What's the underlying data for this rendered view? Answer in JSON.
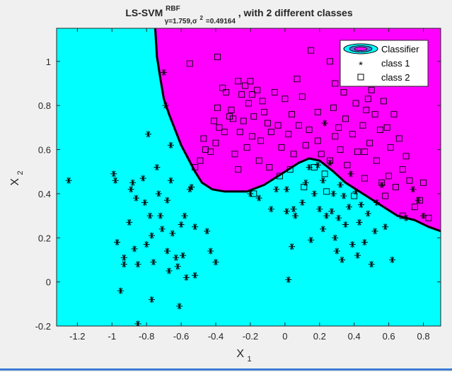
{
  "window": {
    "accent_color": "#3a7bd5",
    "background": "#f0f0f0"
  },
  "chart_data": {
    "type": "scatter",
    "title": {
      "main": "LS-SVM",
      "superscript": "RBF",
      "subscript_gamma": "γ=1.759,σ",
      "subscript_sq": "2",
      "subscript_tail": "=0.49164",
      "suffix": ", with 2 different classes"
    },
    "xlabel": {
      "main": "X",
      "sub": "1"
    },
    "ylabel": {
      "main": "X",
      "sub": "2"
    },
    "xlim": [
      -1.32,
      0.9
    ],
    "ylim": [
      -0.2,
      1.15
    ],
    "xticks": [
      -1.2,
      -1,
      -0.8,
      -0.6,
      -0.4,
      -0.2,
      0,
      0.2,
      0.4,
      0.6,
      0.8
    ],
    "xtick_labels": [
      "-1.2",
      "-1",
      "-0.8",
      "-0.6",
      "-0.4",
      "-0.2",
      "0",
      "0.2",
      "0.4",
      "0.6",
      "0.8"
    ],
    "yticks": [
      -0.2,
      0,
      0.2,
      0.4,
      0.6,
      0.8,
      1
    ],
    "ytick_labels": [
      "-0.2",
      "0",
      "0.2",
      "0.4",
      "0.6",
      "0.8",
      "1"
    ],
    "grid": false,
    "legend": {
      "placement": "top-right",
      "entries": [
        "Classifier",
        "class 1",
        "class 2"
      ]
    },
    "colors": {
      "region_class1": "#00ffff",
      "region_class2": "#ff00ff",
      "boundary": "#000000",
      "markers": "#000000"
    },
    "decision_boundary": [
      [
        -0.75,
        1.15
      ],
      [
        -0.74,
        1.02
      ],
      [
        -0.72,
        0.92
      ],
      [
        -0.7,
        0.83
      ],
      [
        -0.67,
        0.76
      ],
      [
        -0.63,
        0.68
      ],
      [
        -0.6,
        0.62
      ],
      [
        -0.56,
        0.56
      ],
      [
        -0.52,
        0.5
      ],
      [
        -0.48,
        0.45
      ],
      [
        -0.42,
        0.42
      ],
      [
        -0.35,
        0.41
      ],
      [
        -0.22,
        0.41
      ],
      [
        -0.12,
        0.44
      ],
      [
        0.0,
        0.5
      ],
      [
        0.08,
        0.54
      ],
      [
        0.14,
        0.56
      ],
      [
        0.2,
        0.55
      ],
      [
        0.28,
        0.5
      ],
      [
        0.35,
        0.45
      ],
      [
        0.45,
        0.4
      ],
      [
        0.55,
        0.35
      ],
      [
        0.65,
        0.3
      ],
      [
        0.75,
        0.28
      ],
      [
        0.83,
        0.25
      ],
      [
        0.9,
        0.23
      ]
    ],
    "series": [
      {
        "name": "class 1",
        "marker": "asterisk",
        "points": [
          [
            -1.25,
            0.46
          ],
          [
            -0.99,
            0.49
          ],
          [
            -0.98,
            0.46
          ],
          [
            -0.97,
            0.18
          ],
          [
            -0.95,
            -0.04
          ],
          [
            -0.93,
            0.11
          ],
          [
            -0.93,
            0.08
          ],
          [
            -0.9,
            0.27
          ],
          [
            -0.89,
            0.42
          ],
          [
            -0.88,
            0.45
          ],
          [
            -0.87,
            0.15
          ],
          [
            -0.86,
            0.38
          ],
          [
            -0.85,
            0.08
          ],
          [
            -0.85,
            -0.19
          ],
          [
            -0.82,
            0.47
          ],
          [
            -0.81,
            0.36
          ],
          [
            -0.8,
            0.17
          ],
          [
            -0.79,
            0.67
          ],
          [
            -0.78,
            0.3
          ],
          [
            -0.77,
            0.21
          ],
          [
            -0.77,
            -0.08
          ],
          [
            -0.76,
            0.09
          ],
          [
            -0.74,
            0.52
          ],
          [
            -0.73,
            0.4
          ],
          [
            -0.72,
            0.3
          ],
          [
            -0.71,
            0.24
          ],
          [
            -0.7,
            0.95
          ],
          [
            -0.69,
            0.8
          ],
          [
            -0.68,
            0.37
          ],
          [
            -0.68,
            0.14
          ],
          [
            -0.67,
            0.05
          ],
          [
            -0.66,
            0.62
          ],
          [
            -0.66,
            0.46
          ],
          [
            -0.65,
            0.22
          ],
          [
            -0.63,
            0.11
          ],
          [
            -0.62,
            0.07
          ],
          [
            -0.61,
            -0.11
          ],
          [
            -0.6,
            0.26
          ],
          [
            -0.59,
            0.12
          ],
          [
            -0.58,
            0.3
          ],
          [
            -0.57,
            0.02
          ],
          [
            -0.55,
            0.42
          ],
          [
            -0.54,
            0.43
          ],
          [
            -0.52,
            0.03
          ],
          [
            -0.52,
            0.25
          ],
          [
            -0.45,
            0.23
          ],
          [
            -0.43,
            0.14
          ],
          [
            -0.4,
            0.09
          ],
          [
            -0.2,
            0.4
          ],
          [
            -0.15,
            0.38
          ],
          [
            -0.08,
            0.33
          ],
          [
            -0.05,
            0.42
          ],
          [
            0.01,
            0.42
          ],
          [
            0.01,
            0.32
          ],
          [
            0.02,
            0.01
          ],
          [
            0.04,
            0.16
          ],
          [
            0.05,
            0.33
          ],
          [
            0.06,
            0.3
          ],
          [
            0.1,
            0.36
          ],
          [
            0.12,
            0.45
          ],
          [
            0.14,
            0.52
          ],
          [
            0.15,
            0.19
          ],
          [
            0.17,
            0.4
          ],
          [
            0.19,
            0.53
          ],
          [
            0.2,
            0.33
          ],
          [
            0.22,
            0.24
          ],
          [
            0.22,
            0.46
          ],
          [
            0.23,
            0.72
          ],
          [
            0.24,
            0.3
          ],
          [
            0.26,
            0.54
          ],
          [
            0.27,
            0.32
          ],
          [
            0.28,
            0.4
          ],
          [
            0.29,
            0.2
          ],
          [
            0.3,
            0.14
          ],
          [
            0.31,
            0.29
          ],
          [
            0.32,
            0.44
          ],
          [
            0.33,
            0.1
          ],
          [
            0.34,
            0.39
          ],
          [
            0.35,
            0.26
          ],
          [
            0.37,
            0.34
          ],
          [
            0.38,
            0.49
          ],
          [
            0.39,
            0.17
          ],
          [
            0.41,
            0.41
          ],
          [
            0.42,
            0.12
          ],
          [
            0.43,
            0.27
          ],
          [
            0.44,
            0.35
          ],
          [
            0.46,
            0.18
          ],
          [
            0.48,
            0.31
          ],
          [
            0.5,
            0.08
          ],
          [
            0.52,
            0.23
          ],
          [
            0.53,
            0.36
          ],
          [
            0.56,
            0.44
          ],
          [
            0.58,
            0.25
          ],
          [
            0.62,
            0.1
          ],
          [
            0.7,
            0.29
          ],
          [
            0.74,
            0.42
          ],
          [
            0.77,
            0.37
          ],
          [
            0.8,
            0.3
          ]
        ]
      },
      {
        "name": "class 2",
        "marker": "square",
        "points": [
          [
            -0.52,
            0.52
          ],
          [
            -0.49,
            0.55
          ],
          [
            -0.47,
            0.65
          ],
          [
            -0.46,
            0.6
          ],
          [
            -0.43,
            0.59
          ],
          [
            -0.41,
            0.73
          ],
          [
            -0.4,
            0.63
          ],
          [
            -0.39,
            0.79
          ],
          [
            -0.38,
            0.7
          ],
          [
            -0.36,
            0.88
          ],
          [
            -0.35,
            0.68
          ],
          [
            -0.34,
            0.86
          ],
          [
            -0.32,
            0.75
          ],
          [
            -0.31,
            0.78
          ],
          [
            -0.3,
            0.74
          ],
          [
            -0.29,
            0.58
          ],
          [
            -0.27,
            0.51
          ],
          [
            -0.26,
            0.68
          ],
          [
            -0.25,
            0.85
          ],
          [
            -0.24,
            0.73
          ],
          [
            -0.23,
            0.89
          ],
          [
            -0.22,
            0.61
          ],
          [
            -0.21,
            0.81
          ],
          [
            -0.2,
            0.91
          ],
          [
            -0.19,
            0.66
          ],
          [
            -0.18,
            0.75
          ],
          [
            -0.16,
            0.87
          ],
          [
            -0.15,
            0.55
          ],
          [
            -0.14,
            0.64
          ],
          [
            -0.13,
            0.82
          ],
          [
            -0.12,
            0.77
          ],
          [
            -0.1,
            0.72
          ],
          [
            -0.08,
            0.68
          ],
          [
            -0.06,
            0.86
          ],
          [
            -0.04,
            0.71
          ],
          [
            -0.02,
            0.61
          ],
          [
            0.0,
            0.83
          ],
          [
            0.02,
            0.67
          ],
          [
            0.04,
            0.76
          ],
          [
            0.05,
            0.58
          ],
          [
            0.07,
            0.92
          ],
          [
            0.08,
            0.71
          ],
          [
            0.1,
            0.84
          ],
          [
            0.12,
            0.62
          ],
          [
            0.14,
            0.69
          ],
          [
            0.17,
            0.52
          ],
          [
            0.19,
            0.64
          ],
          [
            0.21,
            0.58
          ],
          [
            0.23,
            0.49
          ],
          [
            0.26,
            0.55
          ],
          [
            0.28,
            0.79
          ],
          [
            0.29,
            0.66
          ],
          [
            0.31,
            0.7
          ],
          [
            0.32,
            0.6
          ],
          [
            0.34,
            0.86
          ],
          [
            0.35,
            0.74
          ],
          [
            0.36,
            0.53
          ],
          [
            0.38,
            0.92
          ],
          [
            0.39,
            0.67
          ],
          [
            0.41,
            0.81
          ],
          [
            0.42,
            0.59
          ],
          [
            0.43,
            0.98
          ],
          [
            0.45,
            0.71
          ],
          [
            0.46,
            0.47
          ],
          [
            0.47,
            0.78
          ],
          [
            0.49,
            0.63
          ],
          [
            0.5,
            0.87
          ],
          [
            0.52,
            0.76
          ],
          [
            0.53,
            0.55
          ],
          [
            0.55,
            0.69
          ],
          [
            0.56,
            0.45
          ],
          [
            0.57,
            0.82
          ],
          [
            0.59,
            0.7
          ],
          [
            0.6,
            0.48
          ],
          [
            0.61,
            0.61
          ],
          [
            0.63,
            0.76
          ],
          [
            0.64,
            0.43
          ],
          [
            0.66,
            0.65
          ],
          [
            0.68,
            0.51
          ],
          [
            0.7,
            0.57
          ],
          [
            0.72,
            0.46
          ],
          [
            0.75,
            0.34
          ],
          [
            0.78,
            0.37
          ],
          [
            0.8,
            0.45
          ],
          [
            0.83,
            0.29
          ],
          [
            0.4,
            0.39
          ],
          [
            0.46,
            0.59
          ],
          [
            0.11,
            0.43
          ],
          [
            -0.18,
            0.4
          ],
          [
            -0.03,
            0.48
          ],
          [
            0.58,
            0.39
          ],
          [
            0.68,
            0.3
          ],
          [
            0.24,
            0.41
          ],
          [
            0.03,
            0.51
          ],
          [
            -0.09,
            0.52
          ],
          [
            0.15,
            1.05
          ],
          [
            0.29,
            0.9
          ],
          [
            0.19,
            0.77
          ],
          [
            -0.27,
            0.91
          ],
          [
            -0.55,
            0.99
          ],
          [
            -0.39,
            1.02
          ],
          [
            -0.19,
            0.85
          ],
          [
            0.5,
            0.9
          ],
          [
            0.26,
            1.0
          ],
          [
            0.48,
            0.83
          ]
        ]
      }
    ]
  }
}
